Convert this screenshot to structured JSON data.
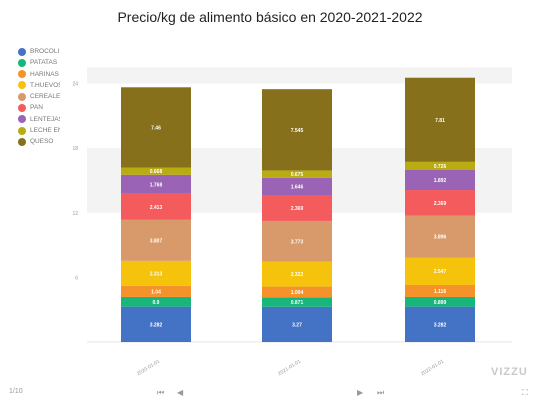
{
  "chart_data": {
    "type": "bar",
    "stacked": true,
    "title": "Precio/kg de alimento básico en 2020-2021-2022",
    "categories": [
      "2020-01-01",
      "2021-01-01",
      "2022-01-01"
    ],
    "y_ticks": [
      6,
      12,
      18,
      24
    ],
    "ylim": [
      0,
      25.5
    ],
    "grid": "alternating horizontal bands",
    "legend_position": "top-left",
    "series": [
      {
        "name": "BROCOLI",
        "color": "#4472c4",
        "values": [
          3.282,
          3.27,
          3.282
        ],
        "labels": [
          "3.282",
          "3.27",
          "3.282"
        ]
      },
      {
        "name": "PATATAS",
        "color": "#18b67a",
        "values": [
          0.9,
          0.871,
          0.899
        ],
        "labels": [
          "0.9",
          "0.871",
          "0.899"
        ]
      },
      {
        "name": "HARINAS",
        "color": "#f5922a",
        "values": [
          1.04,
          1.004,
          1.116
        ],
        "labels": [
          "1.04",
          "1.004",
          "1.116"
        ]
      },
      {
        "name": "T.HUEVOS",
        "color": "#f5c20c",
        "values": [
          2.313,
          2.322,
          2.547
        ],
        "labels": [
          "2.313",
          "2.322",
          "2.547"
        ]
      },
      {
        "name": "CEREALES",
        "color": "#d89a6a",
        "values": [
          3.807,
          3.773,
          3.896
        ],
        "labels": [
          "3.807",
          "3.773",
          "3.896"
        ]
      },
      {
        "name": "PAN",
        "color": "#f35b5d",
        "values": [
          2.413,
          2.369,
          2.369
        ],
        "labels": [
          "2.413",
          "2.369",
          "2.369"
        ]
      },
      {
        "name": "LENTEJAS",
        "color": "#9b63b5",
        "values": [
          1.768,
          1.646,
          1.892
        ],
        "labels": [
          "1.768",
          "1.646",
          "1.892"
        ]
      },
      {
        "name": "LECHE ENTERA",
        "color": "#b9ab12",
        "values": [
          0.668,
          0.675,
          0.726
        ],
        "labels": [
          "0.668",
          "0.675",
          "0.726"
        ]
      },
      {
        "name": "QUESO",
        "color": "#86701c",
        "values": [
          7.46,
          7.545,
          7.81
        ],
        "labels": [
          "7.46",
          "7.545",
          "7.81"
        ]
      }
    ]
  },
  "footer": {
    "page": "1/10",
    "first_glyph": "⏮",
    "prev_glyph": "◀",
    "play_glyph": "▶",
    "last_glyph": "⏭",
    "fullscreen_glyph": "⛶",
    "watermark": "VIZZU"
  }
}
